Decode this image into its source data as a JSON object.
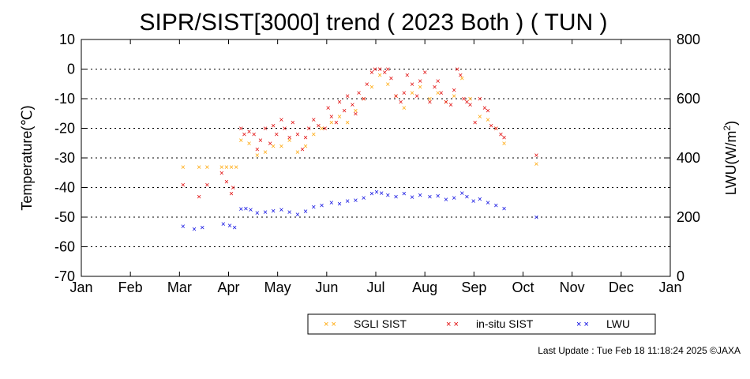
{
  "chart_data": {
    "type": "scatter",
    "title": "SIPR/SIST[3000] trend ( 2023 Both ) ( TUN )",
    "ylabel": "Temperature(℃)",
    "y2label_main": "LWU(W/m",
    "y2label_sup": "2",
    "y2label_end": ")",
    "ylim": [
      -70,
      10
    ],
    "y2lim": [
      0,
      800
    ],
    "yticks": [
      "10",
      "0",
      "-10",
      "-20",
      "-30",
      "-40",
      "-50",
      "-60",
      "-70"
    ],
    "y2ticks": [
      "800",
      "600",
      "400",
      "200",
      "0"
    ],
    "x_months": [
      "Jan",
      "Feb",
      "Mar",
      "Apr",
      "May",
      "Jun",
      "Jul",
      "Aug",
      "Sep",
      "Oct",
      "Nov",
      "Dec",
      "Jan"
    ],
    "grid": "horizontal dotted",
    "legend_position": "bottom",
    "series": [
      {
        "name": "SGLI SIST",
        "axis": "left",
        "color": "#ffa500",
        "points": [
          [
            "2023-03-05",
            -33
          ],
          [
            "2023-03-15",
            -33
          ],
          [
            "2023-03-20",
            -33
          ],
          [
            "2023-03-29",
            -33
          ],
          [
            "2023-04-01",
            -33
          ],
          [
            "2023-04-04",
            -33
          ],
          [
            "2023-04-07",
            -33
          ],
          [
            "2023-04-10",
            -24
          ],
          [
            "2023-04-15",
            -25
          ],
          [
            "2023-04-20",
            -29
          ],
          [
            "2023-04-25",
            -28
          ],
          [
            "2023-04-30",
            -26
          ],
          [
            "2023-05-05",
            -26
          ],
          [
            "2023-05-10",
            -24
          ],
          [
            "2023-05-15",
            -28
          ],
          [
            "2023-05-20",
            -26
          ],
          [
            "2023-05-25",
            -22
          ],
          [
            "2023-05-30",
            -20
          ],
          [
            "2023-06-05",
            -18
          ],
          [
            "2023-06-10",
            -16
          ],
          [
            "2023-06-15",
            -18
          ],
          [
            "2023-06-20",
            -14
          ],
          [
            "2023-06-25",
            -10
          ],
          [
            "2023-06-30",
            -6
          ],
          [
            "2023-07-05",
            -2
          ],
          [
            "2023-07-10",
            -5
          ],
          [
            "2023-07-15",
            -9
          ],
          [
            "2023-07-20",
            -13
          ],
          [
            "2023-07-25",
            -8
          ],
          [
            "2023-07-30",
            -6
          ],
          [
            "2023-08-05",
            -10
          ],
          [
            "2023-08-10",
            -8
          ],
          [
            "2023-08-15",
            -11
          ],
          [
            "2023-08-20",
            -9
          ],
          [
            "2023-08-25",
            -3
          ],
          [
            "2023-08-30",
            -10
          ],
          [
            "2023-09-05",
            -16
          ],
          [
            "2023-09-10",
            -17
          ],
          [
            "2023-09-15",
            -20
          ],
          [
            "2023-09-20",
            -25
          ],
          [
            "2023-10-10",
            -32
          ]
        ]
      },
      {
        "name": "in-situ SIST",
        "axis": "left",
        "color": "#e00000",
        "points": [
          [
            "2023-03-05",
            -39
          ],
          [
            "2023-03-15",
            -43
          ],
          [
            "2023-03-20",
            -39
          ],
          [
            "2023-03-29",
            -35
          ],
          [
            "2023-04-01",
            -38
          ],
          [
            "2023-04-04",
            -42
          ],
          [
            "2023-04-05",
            -40
          ],
          [
            "2023-04-10",
            -20
          ],
          [
            "2023-04-12",
            -22
          ],
          [
            "2023-04-15",
            -21
          ],
          [
            "2023-04-18",
            -22
          ],
          [
            "2023-04-20",
            -27
          ],
          [
            "2023-04-22",
            -24
          ],
          [
            "2023-04-25",
            -20
          ],
          [
            "2023-04-28",
            -25
          ],
          [
            "2023-04-30",
            -19
          ],
          [
            "2023-05-02",
            -22
          ],
          [
            "2023-05-05",
            -17
          ],
          [
            "2023-05-07",
            -20
          ],
          [
            "2023-05-10",
            -23
          ],
          [
            "2023-05-12",
            -18
          ],
          [
            "2023-05-15",
            -22
          ],
          [
            "2023-05-18",
            -27
          ],
          [
            "2023-05-20",
            -23
          ],
          [
            "2023-05-22",
            -20
          ],
          [
            "2023-05-25",
            -17
          ],
          [
            "2023-05-28",
            -19
          ],
          [
            "2023-06-01",
            -20
          ],
          [
            "2023-06-03",
            -13
          ],
          [
            "2023-06-05",
            -16
          ],
          [
            "2023-06-08",
            -18
          ],
          [
            "2023-06-10",
            -11
          ],
          [
            "2023-06-13",
            -14
          ],
          [
            "2023-06-15",
            -9
          ],
          [
            "2023-06-18",
            -12
          ],
          [
            "2023-06-20",
            -15
          ],
          [
            "2023-06-22",
            -8
          ],
          [
            "2023-06-25",
            -10
          ],
          [
            "2023-06-27",
            -5
          ],
          [
            "2023-06-30",
            -1
          ],
          [
            "2023-07-02",
            0
          ],
          [
            "2023-07-05",
            0
          ],
          [
            "2023-07-08",
            -1
          ],
          [
            "2023-07-10",
            0
          ],
          [
            "2023-07-12",
            -3
          ],
          [
            "2023-07-15",
            -9
          ],
          [
            "2023-07-18",
            -11
          ],
          [
            "2023-07-20",
            -8
          ],
          [
            "2023-07-22",
            -2
          ],
          [
            "2023-07-25",
            -5
          ],
          [
            "2023-07-28",
            -9
          ],
          [
            "2023-07-30",
            -4
          ],
          [
            "2023-08-02",
            -1
          ],
          [
            "2023-08-05",
            -11
          ],
          [
            "2023-08-08",
            -6
          ],
          [
            "2023-08-10",
            -4
          ],
          [
            "2023-08-12",
            -8
          ],
          [
            "2023-08-15",
            -11
          ],
          [
            "2023-08-18",
            -12
          ],
          [
            "2023-08-20",
            -7
          ],
          [
            "2023-08-22",
            0
          ],
          [
            "2023-08-24",
            -2
          ],
          [
            "2023-08-26",
            -10
          ],
          [
            "2023-08-28",
            -11
          ],
          [
            "2023-08-30",
            -12
          ],
          [
            "2023-09-02",
            -18
          ],
          [
            "2023-09-05",
            -10
          ],
          [
            "2023-09-08",
            -13
          ],
          [
            "2023-09-10",
            -14
          ],
          [
            "2023-09-12",
            -19
          ],
          [
            "2023-09-15",
            -20
          ],
          [
            "2023-09-18",
            -22
          ],
          [
            "2023-09-20",
            -23
          ],
          [
            "2023-10-10",
            -29
          ]
        ]
      },
      {
        "name": "LWU",
        "axis": "right",
        "color": "#0000e0",
        "points": [
          [
            "2023-03-05",
            170
          ],
          [
            "2023-03-12",
            160
          ],
          [
            "2023-03-17",
            165
          ],
          [
            "2023-03-30",
            178
          ],
          [
            "2023-04-03",
            172
          ],
          [
            "2023-04-06",
            165
          ],
          [
            "2023-04-10",
            228
          ],
          [
            "2023-04-13",
            230
          ],
          [
            "2023-04-16",
            225
          ],
          [
            "2023-04-20",
            215
          ],
          [
            "2023-04-25",
            218
          ],
          [
            "2023-04-30",
            222
          ],
          [
            "2023-05-05",
            226
          ],
          [
            "2023-05-10",
            218
          ],
          [
            "2023-05-15",
            210
          ],
          [
            "2023-05-20",
            220
          ],
          [
            "2023-05-25",
            235
          ],
          [
            "2023-05-30",
            240
          ],
          [
            "2023-06-05",
            250
          ],
          [
            "2023-06-10",
            245
          ],
          [
            "2023-06-15",
            255
          ],
          [
            "2023-06-20",
            258
          ],
          [
            "2023-06-25",
            265
          ],
          [
            "2023-06-30",
            280
          ],
          [
            "2023-07-03",
            285
          ],
          [
            "2023-07-06",
            282
          ],
          [
            "2023-07-10",
            275
          ],
          [
            "2023-07-15",
            270
          ],
          [
            "2023-07-20",
            280
          ],
          [
            "2023-07-25",
            268
          ],
          [
            "2023-07-30",
            275
          ],
          [
            "2023-08-05",
            270
          ],
          [
            "2023-08-10",
            272
          ],
          [
            "2023-08-15",
            260
          ],
          [
            "2023-08-20",
            265
          ],
          [
            "2023-08-25",
            282
          ],
          [
            "2023-08-28",
            270
          ],
          [
            "2023-09-01",
            255
          ],
          [
            "2023-09-05",
            262
          ],
          [
            "2023-09-10",
            250
          ],
          [
            "2023-09-15",
            240
          ],
          [
            "2023-09-20",
            230
          ],
          [
            "2023-10-10",
            200
          ]
        ]
      }
    ]
  },
  "legend": {
    "items": [
      {
        "label": "SGLI SIST",
        "color": "#ffa500"
      },
      {
        "label": "in-situ SIST",
        "color": "#e00000"
      },
      {
        "label": "LWU",
        "color": "#0000e0"
      }
    ]
  },
  "footer": {
    "last_update": "Last Update : Tue Feb 18 11:18:24 2025  ©JAXA"
  }
}
